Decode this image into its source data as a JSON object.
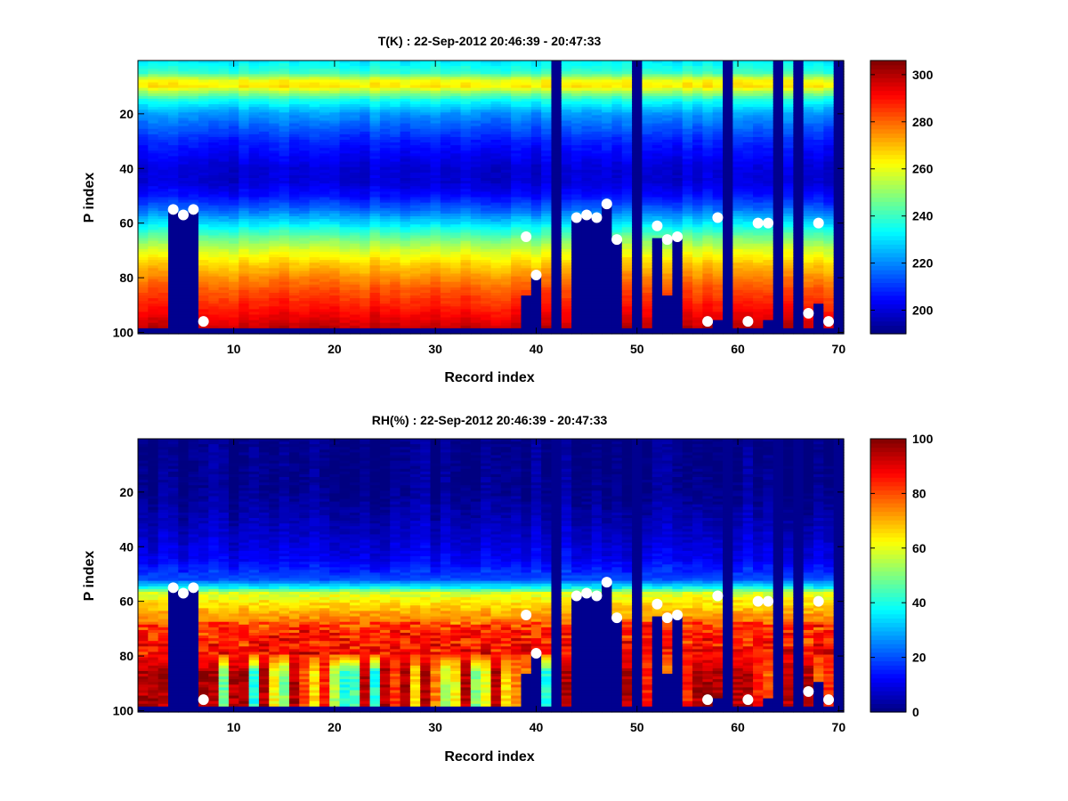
{
  "chart_data": [
    {
      "type": "heatmap",
      "title": "T(K) : 22-Sep-2012 20:46:39 - 20:47:33",
      "xlabel": "Record index",
      "ylabel": "P index",
      "xlim": [
        0.5,
        70.5
      ],
      "ylim": [
        0.5,
        100.5
      ],
      "xticks": [
        10,
        20,
        30,
        40,
        50,
        60,
        70
      ],
      "yticks": [
        20,
        40,
        60,
        80,
        100
      ],
      "colormap": "jet",
      "clim": [
        190,
        306
      ],
      "colorbar_ticks": [
        200,
        220,
        240,
        260,
        280,
        300
      ],
      "profile": [
        [
          1,
          232
        ],
        [
          5,
          240
        ],
        [
          8,
          262
        ],
        [
          10,
          265
        ],
        [
          12,
          252
        ],
        [
          15,
          236
        ],
        [
          20,
          222
        ],
        [
          30,
          208
        ],
        [
          40,
          200
        ],
        [
          45,
          200
        ],
        [
          50,
          206
        ],
        [
          55,
          216
        ],
        [
          60,
          230
        ],
        [
          65,
          245
        ],
        [
          70,
          258
        ],
        [
          75,
          268
        ],
        [
          80,
          276
        ],
        [
          85,
          283
        ],
        [
          90,
          288
        ],
        [
          95,
          294
        ],
        [
          98,
          298
        ]
      ],
      "missing_color": "#00008f"
    },
    {
      "type": "heatmap",
      "title": "RH(%) : 22-Sep-2012 20:46:39 - 20:47:33",
      "xlabel": "Record index",
      "ylabel": "P index",
      "xlim": [
        0.5,
        70.5
      ],
      "ylim": [
        0.5,
        100.5
      ],
      "xticks": [
        10,
        20,
        30,
        40,
        50,
        60,
        70
      ],
      "yticks": [
        20,
        40,
        60,
        80,
        100
      ],
      "colormap": "jet",
      "clim": [
        0,
        100
      ],
      "colorbar_ticks": [
        0,
        20,
        40,
        60,
        80,
        100
      ],
      "profile": [
        [
          1,
          1
        ],
        [
          20,
          2
        ],
        [
          35,
          7
        ],
        [
          45,
          12
        ],
        [
          52,
          20
        ],
        [
          55,
          38
        ],
        [
          57,
          58
        ],
        [
          60,
          64
        ],
        [
          65,
          72
        ],
        [
          70,
          80
        ],
        [
          78,
          84
        ]
      ],
      "lower_rh_by_record": [
        95,
        95,
        95,
        0,
        0,
        0,
        95,
        95,
        48,
        95,
        95,
        40,
        95,
        62,
        50,
        95,
        80,
        65,
        85,
        55,
        40,
        45,
        95,
        40,
        95,
        82,
        95,
        65,
        95,
        75,
        55,
        62,
        95,
        50,
        60,
        95,
        65,
        75,
        75,
        70,
        40,
        0,
        95,
        0,
        0,
        0,
        0,
        90,
        95,
        0,
        85,
        80,
        75,
        80,
        85,
        95,
        95,
        95,
        0,
        95,
        95,
        85,
        78,
        0,
        95,
        0,
        95,
        78,
        85,
        0
      ],
      "missing_color": "#00008f"
    }
  ],
  "masks": {
    "missing_records": [
      42,
      50,
      59,
      64,
      66,
      70
    ],
    "missing_from_p_index": [
      [
        4,
        56
      ],
      [
        5,
        58
      ],
      [
        6,
        56
      ],
      [
        39,
        87
      ],
      [
        40,
        80
      ],
      [
        44,
        58
      ],
      [
        45,
        58
      ],
      [
        46,
        58
      ],
      [
        47,
        54
      ],
      [
        48,
        67
      ],
      [
        52,
        66
      ],
      [
        53,
        87
      ],
      [
        54,
        66
      ],
      [
        58,
        96
      ],
      [
        63,
        96
      ],
      [
        68,
        90
      ]
    ],
    "missing_bottom_rows_from": 99
  },
  "markers": [
    [
      4,
      55
    ],
    [
      5,
      57
    ],
    [
      6,
      55
    ],
    [
      7,
      96
    ],
    [
      39,
      65
    ],
    [
      40,
      79
    ],
    [
      44,
      58
    ],
    [
      45,
      57
    ],
    [
      46,
      58
    ],
    [
      47,
      53
    ],
    [
      48,
      66
    ],
    [
      52,
      61
    ],
    [
      53,
      66
    ],
    [
      54,
      65
    ],
    [
      57,
      96
    ],
    [
      58,
      58
    ],
    [
      61,
      96
    ],
    [
      62,
      60
    ],
    [
      63,
      60
    ],
    [
      67,
      93
    ],
    [
      68,
      60
    ],
    [
      69,
      96
    ]
  ]
}
